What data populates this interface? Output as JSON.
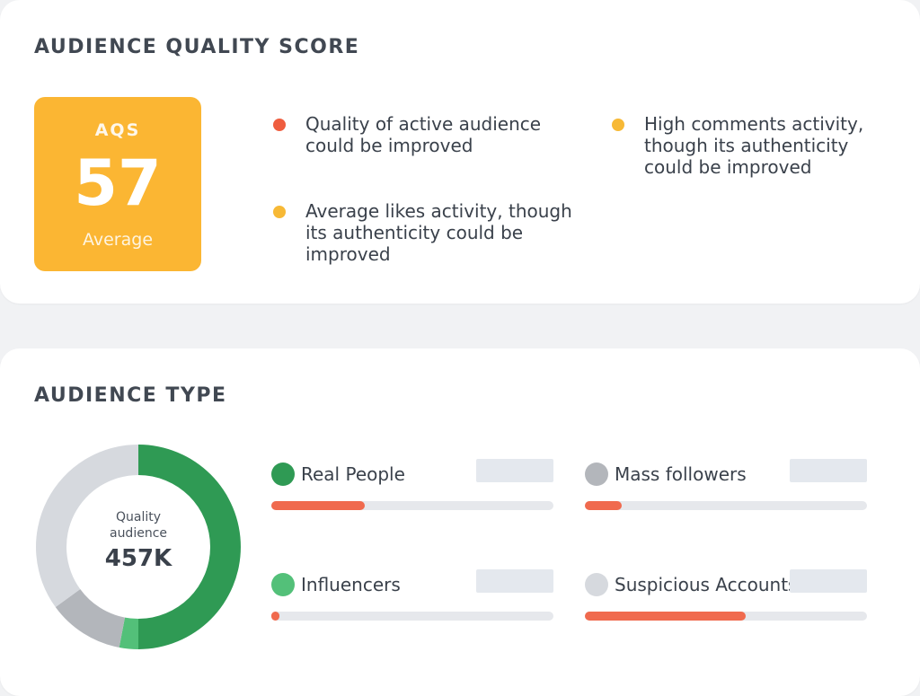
{
  "colors": {
    "score_box": "#fbb633",
    "red": "#ef5d3f",
    "yellow": "#f7b936",
    "green_dark": "#2f9a54",
    "green_light": "#53c079",
    "gray_mid": "#b3b6bb",
    "gray_light": "#d6d9de",
    "bar_fill": "#f06a4e"
  },
  "aqs_card": {
    "title": "AUDIENCE QUALITY SCORE",
    "score_label": "AQS",
    "score_value": "57",
    "score_rating": "Average",
    "insights": [
      {
        "text": "Quality of active audience could be improved",
        "dot_color": "#ef5d3f"
      },
      {
        "text": "Average likes activity, though its authenticity could be improved",
        "dot_color": "#f7b936"
      },
      {
        "text": "High comments activity, though its authenticity could be improved",
        "dot_color": "#f7b936"
      }
    ]
  },
  "type_card": {
    "title": "AUDIENCE TYPE",
    "donut": {
      "caption": "Quality audience",
      "value": "457K",
      "segments": [
        {
          "name": "Real People",
          "fraction": 0.5,
          "color": "#2f9a54"
        },
        {
          "name": "Influencers",
          "fraction": 0.03,
          "color": "#53c079"
        },
        {
          "name": "Mass followers",
          "fraction": 0.12,
          "color": "#b3b6bb"
        },
        {
          "name": "Suspicious Accounts",
          "fraction": 0.35,
          "color": "#d6d9de"
        }
      ]
    },
    "metrics": [
      {
        "label": "Real People",
        "dot_color": "#2f9a54",
        "bar_fraction": 0.33
      },
      {
        "label": "Mass followers",
        "dot_color": "#b3b6bb",
        "bar_fraction": 0.13
      },
      {
        "label": "Influencers",
        "dot_color": "#53c079",
        "bar_fraction": 0.03
      },
      {
        "label": "Suspicious Accounts",
        "dot_color": "#d6d9de",
        "bar_fraction": 0.57
      }
    ]
  }
}
